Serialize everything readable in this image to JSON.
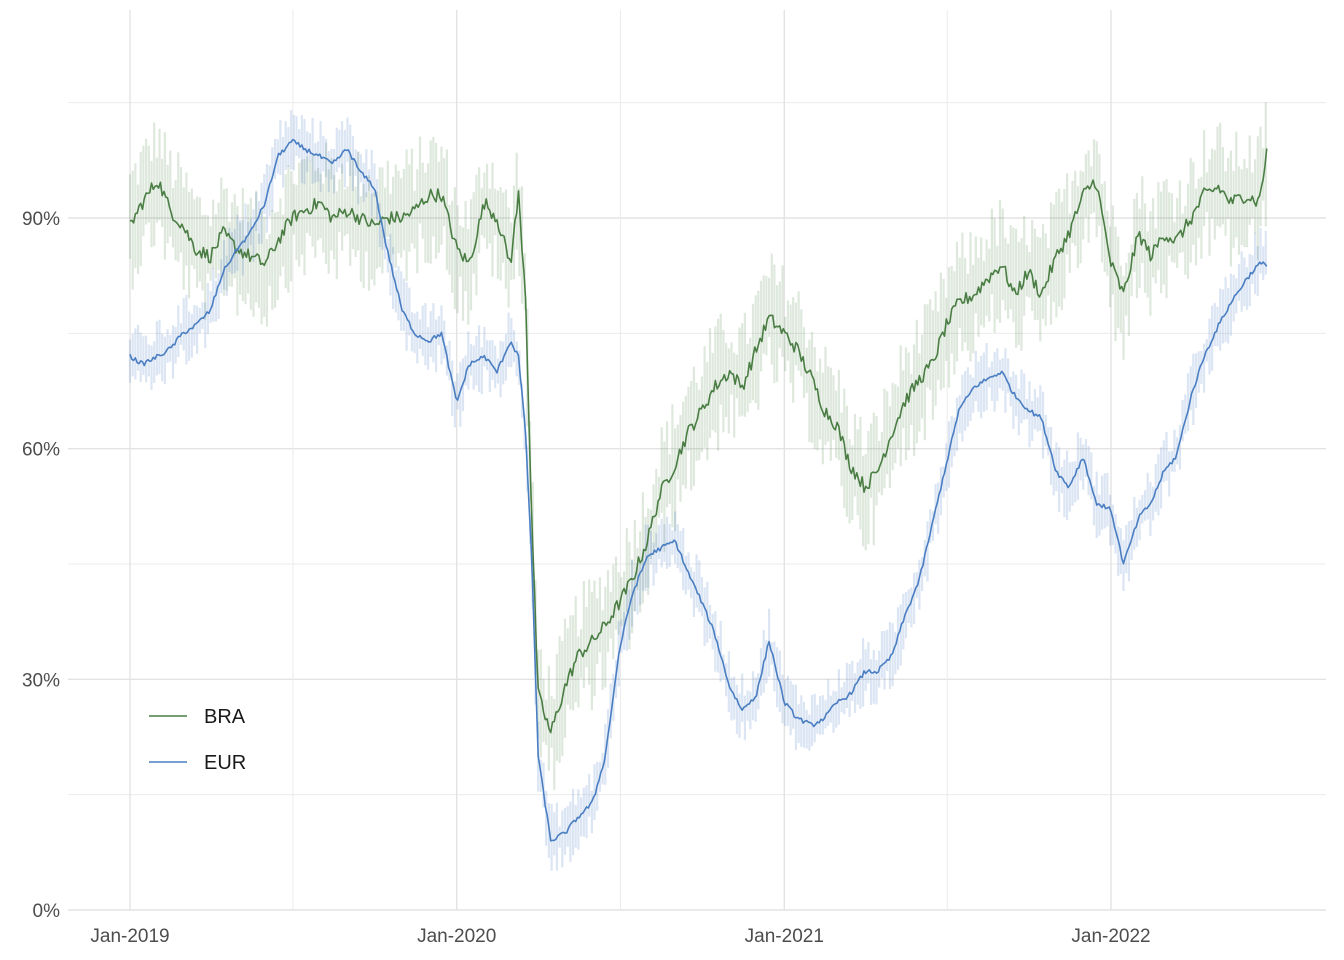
{
  "chart_data": {
    "type": "line",
    "title": "",
    "xlabel": "",
    "ylabel": "",
    "x_range": [
      "2019-01-01",
      "2022-07-01"
    ],
    "ylim": [
      0,
      1.17
    ],
    "x_ticks": [
      {
        "date": "2019-01-01",
        "label": "Jan-2019"
      },
      {
        "date": "2020-01-01",
        "label": "Jan-2020"
      },
      {
        "date": "2021-01-01",
        "label": "Jan-2021"
      },
      {
        "date": "2022-01-01",
        "label": "Jan-2022"
      }
    ],
    "y_ticks": [
      {
        "value": 0,
        "label": "0%"
      },
      {
        "value": 0.3,
        "label": "30%"
      },
      {
        "value": 0.6,
        "label": "60%"
      },
      {
        "value": 0.9,
        "label": "90%"
      }
    ],
    "grid": true,
    "legend": {
      "position": "bottom-left"
    },
    "series": [
      {
        "name": "BRA",
        "color": "#4a7d43",
        "band_color": "#4a7d43",
        "points": [
          [
            "2019-01-01",
            0.89
          ],
          [
            "2019-01-15",
            0.92
          ],
          [
            "2019-02-01",
            0.95
          ],
          [
            "2019-02-15",
            0.91
          ],
          [
            "2019-03-01",
            0.89
          ],
          [
            "2019-03-15",
            0.86
          ],
          [
            "2019-04-01",
            0.85
          ],
          [
            "2019-04-15",
            0.88
          ],
          [
            "2019-05-01",
            0.86
          ],
          [
            "2019-05-15",
            0.85
          ],
          [
            "2019-06-01",
            0.84
          ],
          [
            "2019-06-15",
            0.87
          ],
          [
            "2019-07-01",
            0.9
          ],
          [
            "2019-07-15",
            0.91
          ],
          [
            "2019-08-01",
            0.92
          ],
          [
            "2019-08-15",
            0.9
          ],
          [
            "2019-09-01",
            0.91
          ],
          [
            "2019-09-15",
            0.9
          ],
          [
            "2019-10-01",
            0.89
          ],
          [
            "2019-10-15",
            0.9
          ],
          [
            "2019-11-01",
            0.9
          ],
          [
            "2019-11-15",
            0.91
          ],
          [
            "2019-12-01",
            0.93
          ],
          [
            "2019-12-15",
            0.93
          ],
          [
            "2020-01-01",
            0.86
          ],
          [
            "2020-01-15",
            0.84
          ],
          [
            "2020-02-01",
            0.92
          ],
          [
            "2020-02-15",
            0.9
          ],
          [
            "2020-03-01",
            0.84
          ],
          [
            "2020-03-10",
            0.93
          ],
          [
            "2020-03-18",
            0.8
          ],
          [
            "2020-03-25",
            0.5
          ],
          [
            "2020-04-01",
            0.28
          ],
          [
            "2020-04-15",
            0.23
          ],
          [
            "2020-05-01",
            0.29
          ],
          [
            "2020-05-15",
            0.33
          ],
          [
            "2020-06-01",
            0.35
          ],
          [
            "2020-06-15",
            0.37
          ],
          [
            "2020-07-01",
            0.4
          ],
          [
            "2020-07-15",
            0.43
          ],
          [
            "2020-08-01",
            0.48
          ],
          [
            "2020-08-15",
            0.54
          ],
          [
            "2020-09-01",
            0.58
          ],
          [
            "2020-09-15",
            0.62
          ],
          [
            "2020-10-01",
            0.65
          ],
          [
            "2020-10-15",
            0.68
          ],
          [
            "2020-11-01",
            0.7
          ],
          [
            "2020-11-15",
            0.68
          ],
          [
            "2020-12-01",
            0.73
          ],
          [
            "2020-12-15",
            0.77
          ],
          [
            "2021-01-01",
            0.75
          ],
          [
            "2021-01-15",
            0.73
          ],
          [
            "2021-02-01",
            0.69
          ],
          [
            "2021-02-15",
            0.65
          ],
          [
            "2021-03-01",
            0.63
          ],
          [
            "2021-03-15",
            0.58
          ],
          [
            "2021-04-01",
            0.55
          ],
          [
            "2021-04-15",
            0.57
          ],
          [
            "2021-05-01",
            0.62
          ],
          [
            "2021-05-15",
            0.66
          ],
          [
            "2021-06-01",
            0.69
          ],
          [
            "2021-06-15",
            0.71
          ],
          [
            "2021-07-01",
            0.76
          ],
          [
            "2021-07-15",
            0.79
          ],
          [
            "2021-08-01",
            0.8
          ],
          [
            "2021-08-15",
            0.82
          ],
          [
            "2021-09-01",
            0.84
          ],
          [
            "2021-09-15",
            0.8
          ],
          [
            "2021-10-01",
            0.83
          ],
          [
            "2021-10-15",
            0.8
          ],
          [
            "2021-11-01",
            0.85
          ],
          [
            "2021-11-15",
            0.88
          ],
          [
            "2021-12-01",
            0.93
          ],
          [
            "2021-12-15",
            0.95
          ],
          [
            "2022-01-01",
            0.84
          ],
          [
            "2022-01-15",
            0.8
          ],
          [
            "2022-02-01",
            0.88
          ],
          [
            "2022-02-15",
            0.85
          ],
          [
            "2022-03-01",
            0.88
          ],
          [
            "2022-03-15",
            0.87
          ],
          [
            "2022-04-01",
            0.9
          ],
          [
            "2022-04-15",
            0.93
          ],
          [
            "2022-05-01",
            0.94
          ],
          [
            "2022-05-15",
            0.92
          ],
          [
            "2022-06-01",
            0.93
          ],
          [
            "2022-06-15",
            0.92
          ],
          [
            "2022-06-25",
            0.99
          ]
        ]
      },
      {
        "name": "EUR",
        "color": "#4a7ec2",
        "band_color": "#4a7ec2",
        "points": [
          [
            "2019-01-01",
            0.72
          ],
          [
            "2019-01-15",
            0.71
          ],
          [
            "2019-02-01",
            0.72
          ],
          [
            "2019-02-15",
            0.73
          ],
          [
            "2019-03-01",
            0.75
          ],
          [
            "2019-03-15",
            0.76
          ],
          [
            "2019-04-01",
            0.78
          ],
          [
            "2019-04-15",
            0.83
          ],
          [
            "2019-05-01",
            0.86
          ],
          [
            "2019-05-15",
            0.88
          ],
          [
            "2019-06-01",
            0.92
          ],
          [
            "2019-06-15",
            0.98
          ],
          [
            "2019-07-01",
            1.0
          ],
          [
            "2019-07-15",
            0.99
          ],
          [
            "2019-08-01",
            0.98
          ],
          [
            "2019-08-15",
            0.97
          ],
          [
            "2019-09-01",
            0.99
          ],
          [
            "2019-09-15",
            0.96
          ],
          [
            "2019-10-01",
            0.94
          ],
          [
            "2019-10-15",
            0.86
          ],
          [
            "2019-11-01",
            0.78
          ],
          [
            "2019-11-15",
            0.75
          ],
          [
            "2019-12-01",
            0.74
          ],
          [
            "2019-12-15",
            0.75
          ],
          [
            "2020-01-01",
            0.66
          ],
          [
            "2020-01-15",
            0.71
          ],
          [
            "2020-02-01",
            0.72
          ],
          [
            "2020-02-15",
            0.7
          ],
          [
            "2020-03-01",
            0.74
          ],
          [
            "2020-03-10",
            0.72
          ],
          [
            "2020-03-18",
            0.62
          ],
          [
            "2020-03-25",
            0.45
          ],
          [
            "2020-04-01",
            0.2
          ],
          [
            "2020-04-15",
            0.09
          ],
          [
            "2020-05-01",
            0.1
          ],
          [
            "2020-05-15",
            0.12
          ],
          [
            "2020-06-01",
            0.14
          ],
          [
            "2020-06-15",
            0.2
          ],
          [
            "2020-07-01",
            0.34
          ],
          [
            "2020-07-15",
            0.41
          ],
          [
            "2020-08-01",
            0.46
          ],
          [
            "2020-08-15",
            0.47
          ],
          [
            "2020-09-01",
            0.48
          ],
          [
            "2020-09-15",
            0.44
          ],
          [
            "2020-10-01",
            0.4
          ],
          [
            "2020-10-15",
            0.36
          ],
          [
            "2020-11-01",
            0.29
          ],
          [
            "2020-11-15",
            0.26
          ],
          [
            "2020-12-01",
            0.28
          ],
          [
            "2020-12-15",
            0.35
          ],
          [
            "2021-01-01",
            0.27
          ],
          [
            "2021-01-15",
            0.25
          ],
          [
            "2021-02-01",
            0.24
          ],
          [
            "2021-02-15",
            0.25
          ],
          [
            "2021-03-01",
            0.27
          ],
          [
            "2021-03-15",
            0.28
          ],
          [
            "2021-04-01",
            0.31
          ],
          [
            "2021-04-15",
            0.31
          ],
          [
            "2021-05-01",
            0.33
          ],
          [
            "2021-05-15",
            0.38
          ],
          [
            "2021-06-01",
            0.43
          ],
          [
            "2021-06-15",
            0.5
          ],
          [
            "2021-07-01",
            0.58
          ],
          [
            "2021-07-15",
            0.65
          ],
          [
            "2021-08-01",
            0.68
          ],
          [
            "2021-08-15",
            0.69
          ],
          [
            "2021-09-01",
            0.7
          ],
          [
            "2021-09-15",
            0.67
          ],
          [
            "2021-10-01",
            0.65
          ],
          [
            "2021-10-15",
            0.64
          ],
          [
            "2021-11-01",
            0.57
          ],
          [
            "2021-11-15",
            0.55
          ],
          [
            "2021-12-01",
            0.59
          ],
          [
            "2021-12-15",
            0.53
          ],
          [
            "2022-01-01",
            0.52
          ],
          [
            "2022-01-15",
            0.45
          ],
          [
            "2022-02-01",
            0.51
          ],
          [
            "2022-02-15",
            0.53
          ],
          [
            "2022-03-01",
            0.57
          ],
          [
            "2022-03-15",
            0.59
          ],
          [
            "2022-04-01",
            0.67
          ],
          [
            "2022-04-15",
            0.72
          ],
          [
            "2022-05-01",
            0.76
          ],
          [
            "2022-05-15",
            0.79
          ],
          [
            "2022-06-01",
            0.82
          ],
          [
            "2022-06-15",
            0.84
          ],
          [
            "2022-06-25",
            0.84
          ]
        ]
      }
    ]
  }
}
